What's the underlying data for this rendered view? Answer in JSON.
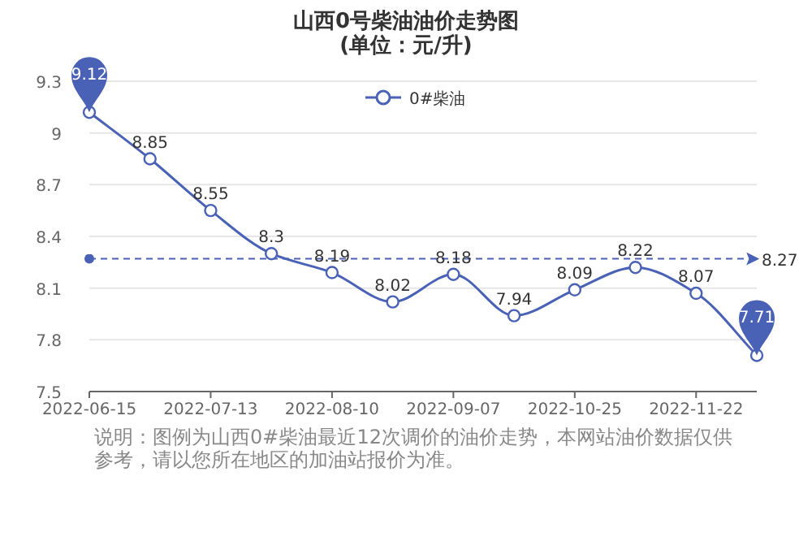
{
  "chart_data": {
    "type": "line",
    "title": "山西0号柴油油价走势图",
    "subtitle": "(单位：元/升)",
    "categories": [
      "2022-06-15",
      null,
      "2022-07-13",
      null,
      "2022-08-10",
      null,
      "2022-09-07",
      null,
      "2022-10-25",
      null,
      "2022-11-22",
      null
    ],
    "series": [
      {
        "name": "0#柴油",
        "color": "#4a62b5",
        "values": [
          9.12,
          8.85,
          8.55,
          8.3,
          8.19,
          8.02,
          8.18,
          7.94,
          8.09,
          8.22,
          8.07,
          7.71
        ]
      }
    ],
    "ylim": [
      7.5,
      9.3
    ],
    "yticks": [
      7.5,
      7.8,
      8.1,
      8.4,
      8.7,
      9,
      9.3
    ],
    "grid": "y",
    "legend": "top",
    "marker": "circle",
    "line_style": "solid",
    "data_labels": true,
    "ref_lines": [
      {
        "axis": "y",
        "value": 8.27,
        "label": "8.27",
        "color": "#4a62b5",
        "line_style": "dashed"
      }
    ],
    "annotations": [
      "说明：图例为山西0#柴油最近12次调价的油价走势，本网站油价数据仅供参考，请以您所在地区的加油站报价为准。"
    ]
  }
}
